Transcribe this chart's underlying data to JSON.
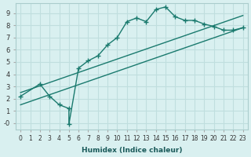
{
  "xlabel": "Humidex (Indice chaleur)",
  "bg_color": "#d9f0f0",
  "grid_color": "#c0dede",
  "line_color": "#1a7a6e",
  "xlim": [
    -0.5,
    23.5
  ],
  "ylim": [
    -0.5,
    9.8
  ],
  "xticks": [
    0,
    1,
    2,
    3,
    4,
    5,
    6,
    7,
    8,
    9,
    10,
    11,
    12,
    13,
    14,
    15,
    16,
    17,
    18,
    19,
    20,
    21,
    22,
    23
  ],
  "yticks": [
    0,
    1,
    2,
    3,
    4,
    5,
    6,
    7,
    8,
    9
  ],
  "main_x": [
    0,
    2,
    3,
    4,
    5,
    5,
    6,
    7,
    8,
    9,
    10,
    11,
    12,
    13,
    14,
    15,
    16,
    17,
    18,
    19,
    20,
    21,
    22,
    23
  ],
  "main_y": [
    2.2,
    3.2,
    2.2,
    1.5,
    1.2,
    -0.1,
    4.5,
    5.1,
    5.5,
    6.4,
    7.0,
    8.3,
    8.6,
    8.3,
    9.3,
    9.5,
    8.7,
    8.4,
    8.4,
    8.1,
    7.9,
    7.6,
    7.6,
    7.8
  ],
  "line1_x": [
    0,
    23
  ],
  "line1_y": [
    2.5,
    8.8
  ],
  "line2_x": [
    0,
    23
  ],
  "line2_y": [
    1.5,
    7.8
  ]
}
